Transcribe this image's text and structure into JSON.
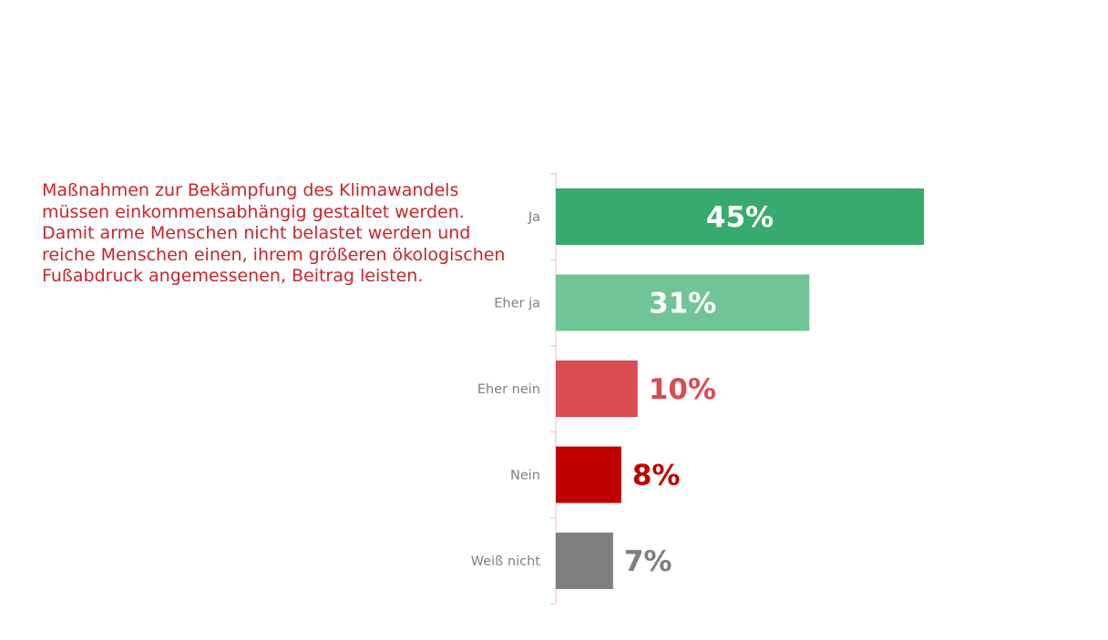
{
  "statement": "Maßnahmen zur Bekämpfung des Klimawandels müssen einkommensabhängig gestaltet werden. Damit arme Menschen nicht belastet werden und reiche Menschen einen, ihrem größeren ökologischen Fußabdruck angemessenen, Beitrag leisten.",
  "colors": {
    "statement_text": "#c8242b",
    "axis_line": "#f2b8c6",
    "category_label": "#7f7f7f"
  },
  "chart_data": {
    "type": "bar",
    "orientation": "horizontal",
    "categories": [
      "Ja",
      "Eher ja",
      "Eher nein",
      "Nein",
      "Weiß nicht"
    ],
    "values": [
      45,
      31,
      10,
      8,
      7
    ],
    "value_labels": [
      "45%",
      "31%",
      "10%",
      "8%",
      "7%"
    ],
    "unit": "%",
    "xlim": [
      0,
      100
    ],
    "grid": false,
    "legend": "none",
    "bar_colors": [
      "#37ab6d",
      "#71c496",
      "#d84c52",
      "#c00000",
      "#7f7f7f"
    ],
    "label_colors": [
      "#ffffff",
      "#ffffff",
      "#d84c52",
      "#c00000",
      "#7f7f7f"
    ],
    "label_placement": [
      "inside",
      "inside",
      "outside",
      "outside",
      "outside"
    ]
  }
}
